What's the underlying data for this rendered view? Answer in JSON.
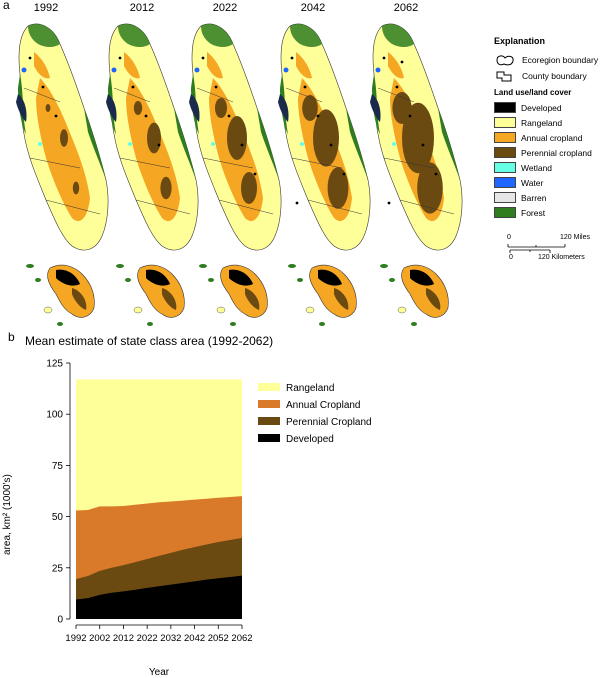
{
  "panels": {
    "a": "a",
    "b": "b"
  },
  "map_years": [
    "1992",
    "2012",
    "2022",
    "2042",
    "2062"
  ],
  "map_legend": {
    "title": "Explanation",
    "boundaries": [
      {
        "label": "Ecoregion boundary",
        "icon": "ecoregion-outline-icon"
      },
      {
        "label": "County boundary",
        "icon": "county-outline-icon"
      }
    ],
    "land_cover_title": "Land use/land cover",
    "classes": [
      {
        "label": "Developed",
        "color": "#000000"
      },
      {
        "label": "Rangeland",
        "color": "#ffff99"
      },
      {
        "label": "Annual cropland",
        "color": "#f5a623"
      },
      {
        "label": "Perennial cropland",
        "color": "#6b4a12"
      },
      {
        "label": "Wetland",
        "color": "#66ffe6"
      },
      {
        "label": "Water",
        "color": "#1f66ff"
      },
      {
        "label": "Barren",
        "color": "#e6e6e6"
      },
      {
        "label": "Forest",
        "color": "#2e7d1f"
      }
    ],
    "scale": {
      "miles_ticks": [
        "0",
        "120 Miles"
      ],
      "km_ticks": [
        "0",
        "120 Kilometers"
      ]
    }
  },
  "chart_data": {
    "type": "area",
    "stacked": true,
    "title": "Mean estimate of state class area (1992-2062)",
    "xlabel": "Year",
    "ylabel": "area, km² (1000's)",
    "x": [
      1992,
      1997,
      2002,
      2007,
      2012,
      2017,
      2022,
      2027,
      2032,
      2037,
      2042,
      2047,
      2052,
      2057,
      2062
    ],
    "xticks": [
      "1992",
      "2002",
      "2012",
      "2022",
      "2032",
      "2042",
      "2052",
      "2062"
    ],
    "xlim": [
      1992,
      2062
    ],
    "yticks": [
      "0",
      "25",
      "50",
      "75",
      "100",
      "125"
    ],
    "ylim": [
      0,
      125
    ],
    "series": [
      {
        "name": "Developed",
        "color": "#000000",
        "cumulative": [
          9.5,
          10.2,
          11.8,
          12.8,
          13.5,
          14.3,
          15.2,
          16.0,
          16.8,
          17.6,
          18.4,
          19.2,
          19.9,
          20.5,
          21.2
        ]
      },
      {
        "name": "Perennial Cropland",
        "color": "#6b4a12",
        "cumulative": [
          19.5,
          21.0,
          23.5,
          25.0,
          26.3,
          27.8,
          29.3,
          30.8,
          32.3,
          33.8,
          35.1,
          36.4,
          37.6,
          38.6,
          39.6
        ]
      },
      {
        "name": "Annual Cropland",
        "color": "#d97a2b",
        "cumulative": [
          53.0,
          53.2,
          55.0,
          55.0,
          55.2,
          55.8,
          56.4,
          57.0,
          57.4,
          57.8,
          58.3,
          58.7,
          59.2,
          59.6,
          60.0
        ]
      },
      {
        "name": "Rangeland",
        "color": "#ffff99",
        "cumulative": [
          117,
          117,
          117,
          117,
          117,
          117,
          117,
          117,
          117,
          117,
          117,
          117,
          117,
          117,
          117
        ]
      }
    ],
    "legend_order": [
      "Rangeland",
      "Annual Cropland",
      "Perennial Cropland",
      "Developed"
    ],
    "legend_position": "right"
  }
}
